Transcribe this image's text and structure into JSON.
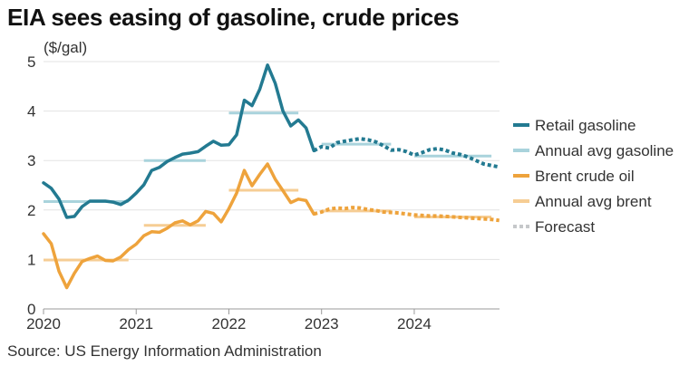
{
  "title": "EIA sees easing of gasoline, crude prices",
  "source": "Source: US Energy Information Administration",
  "chart_data": {
    "type": "line",
    "ylabel": "($/gal)",
    "ylim": [
      0,
      5
    ],
    "yticks": [
      "0",
      "1",
      "2",
      "3",
      "4",
      "5"
    ],
    "xlim": [
      2020,
      2024.92
    ],
    "xticks": [
      "2020",
      "2021",
      "2022",
      "2023",
      "2024"
    ],
    "grid": true,
    "legend_position": "right",
    "series": [
      {
        "name": "Retail gasoline",
        "color": "#237a91",
        "style": "solid",
        "x": [
          2020.0,
          2020.083,
          2020.167,
          2020.25,
          2020.333,
          2020.417,
          2020.5,
          2020.583,
          2020.667,
          2020.75,
          2020.833,
          2020.917,
          2021.0,
          2021.083,
          2021.167,
          2021.25,
          2021.333,
          2021.417,
          2021.5,
          2021.583,
          2021.667,
          2021.75,
          2021.833,
          2021.917,
          2022.0,
          2022.083,
          2022.167,
          2022.25,
          2022.333,
          2022.417,
          2022.5,
          2022.583,
          2022.667,
          2022.75,
          2022.833,
          2022.917
        ],
        "y": [
          2.55,
          2.44,
          2.22,
          1.85,
          1.87,
          2.07,
          2.18,
          2.18,
          2.18,
          2.16,
          2.11,
          2.2,
          2.34,
          2.51,
          2.8,
          2.86,
          2.98,
          3.06,
          3.13,
          3.15,
          3.18,
          3.29,
          3.39,
          3.31,
          3.32,
          3.52,
          4.22,
          4.11,
          4.44,
          4.93,
          4.56,
          4.0,
          3.7,
          3.82,
          3.66,
          3.2
        ]
      },
      {
        "name": "Annual avg gasoline",
        "color": "#a9d3dc",
        "style": "segments",
        "segments": [
          {
            "x": [
              2020.0,
              2020.917
            ],
            "y": 2.17
          },
          {
            "x": [
              2021.083,
              2021.75
            ],
            "y": 3.0
          },
          {
            "x": [
              2022.0,
              2022.75
            ],
            "y": 3.96
          },
          {
            "x": [
              2023.0,
              2023.75
            ],
            "y": 3.33
          },
          {
            "x": [
              2024.0,
              2024.833
            ],
            "y": 3.09
          }
        ]
      },
      {
        "name": "Brent crude oil",
        "color": "#eea33c",
        "style": "solid",
        "x": [
          2020.0,
          2020.083,
          2020.167,
          2020.25,
          2020.333,
          2020.417,
          2020.5,
          2020.583,
          2020.667,
          2020.75,
          2020.833,
          2020.917,
          2021.0,
          2021.083,
          2021.167,
          2021.25,
          2021.333,
          2021.417,
          2021.5,
          2021.583,
          2021.667,
          2021.75,
          2021.833,
          2021.917,
          2022.0,
          2022.083,
          2022.167,
          2022.25,
          2022.333,
          2022.417,
          2022.5,
          2022.583,
          2022.667,
          2022.75,
          2022.833,
          2022.917
        ],
        "y": [
          1.52,
          1.32,
          0.76,
          0.43,
          0.72,
          0.96,
          1.02,
          1.07,
          0.98,
          0.97,
          1.05,
          1.2,
          1.31,
          1.48,
          1.56,
          1.55,
          1.63,
          1.74,
          1.78,
          1.7,
          1.78,
          1.97,
          1.93,
          1.76,
          2.03,
          2.34,
          2.8,
          2.49,
          2.72,
          2.93,
          2.62,
          2.39,
          2.15,
          2.22,
          2.19,
          1.92
        ]
      },
      {
        "name": "Annual avg brent",
        "color": "#f6cd94",
        "style": "segments",
        "segments": [
          {
            "x": [
              2020.0,
              2020.917
            ],
            "y": 0.99
          },
          {
            "x": [
              2021.083,
              2021.75
            ],
            "y": 1.69
          },
          {
            "x": [
              2022.0,
              2022.75
            ],
            "y": 2.4
          },
          {
            "x": [
              2023.0,
              2023.75
            ],
            "y": 1.98
          },
          {
            "x": [
              2024.0,
              2024.833
            ],
            "y": 1.86
          }
        ]
      },
      {
        "name": "Forecast",
        "color": "#c6c8ca",
        "style": "dotted",
        "legend_only": true
      }
    ],
    "forecasts": [
      {
        "of": "Retail gasoline",
        "color": "#237a91",
        "x": [
          2022.917,
          2023.0,
          2023.083,
          2023.167,
          2023.25,
          2023.333,
          2023.417,
          2023.5,
          2023.583,
          2023.667,
          2023.75,
          2023.833,
          2023.917,
          2024.0,
          2024.083,
          2024.167,
          2024.25,
          2024.333,
          2024.417,
          2024.5,
          2024.583,
          2024.667,
          2024.75,
          2024.833,
          2024.917
        ],
        "y": [
          3.2,
          3.28,
          3.25,
          3.36,
          3.39,
          3.42,
          3.44,
          3.42,
          3.38,
          3.3,
          3.21,
          3.22,
          3.18,
          3.11,
          3.16,
          3.22,
          3.24,
          3.21,
          3.15,
          3.12,
          3.07,
          3.0,
          2.93,
          2.9,
          2.87
        ]
      },
      {
        "of": "Brent crude oil",
        "color": "#eea33c",
        "x": [
          2022.917,
          2023.0,
          2023.083,
          2023.167,
          2023.25,
          2023.333,
          2023.417,
          2023.5,
          2023.583,
          2023.667,
          2023.75,
          2023.833,
          2023.917,
          2024.0,
          2024.083,
          2024.167,
          2024.25,
          2024.333,
          2024.417,
          2024.5,
          2024.583,
          2024.667,
          2024.75,
          2024.833,
          2024.917
        ],
        "y": [
          1.92,
          1.96,
          2.02,
          2.04,
          2.03,
          2.05,
          2.04,
          2.01,
          1.99,
          1.96,
          1.95,
          1.94,
          1.92,
          1.9,
          1.89,
          1.88,
          1.88,
          1.87,
          1.86,
          1.85,
          1.84,
          1.83,
          1.82,
          1.81,
          1.79
        ]
      }
    ]
  }
}
